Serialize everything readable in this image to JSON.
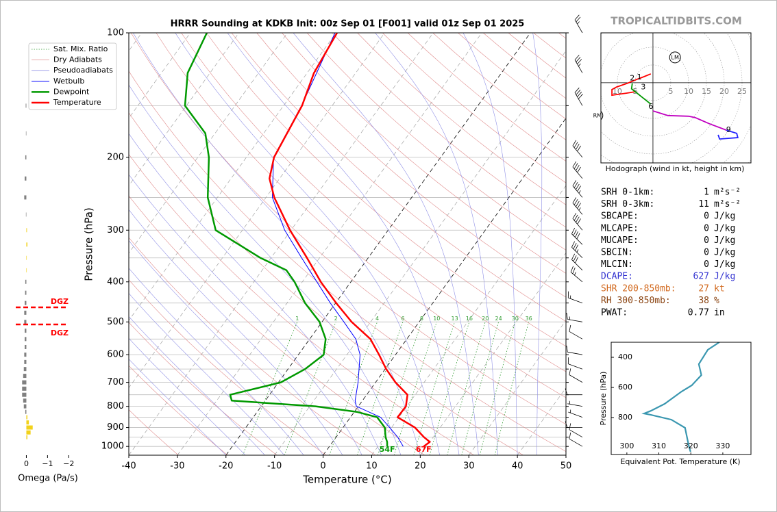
{
  "header": {
    "site": "TROPICALTIDBITS.COM"
  },
  "stats": [
    {
      "label": "SRH 0-1km:",
      "value": 1,
      "unit": "m²s⁻²",
      "color": "#000000"
    },
    {
      "label": "SRH 0-3km:",
      "value": 11,
      "unit": "m²s⁻²",
      "color": "#000000"
    },
    {
      "label": "SBCAPE:",
      "value": 0,
      "unit": "J/kg",
      "color": "#000000"
    },
    {
      "label": "MLCAPE:",
      "value": 0,
      "unit": "J/kg",
      "color": "#000000"
    },
    {
      "label": "MUCAPE:",
      "value": 0,
      "unit": "J/kg",
      "color": "#000000"
    },
    {
      "label": "SBCIN:",
      "value": 0,
      "unit": "J/kg",
      "color": "#000000"
    },
    {
      "label": "MLCIN:",
      "value": 0,
      "unit": "J/kg",
      "color": "#000000"
    },
    {
      "label": "DCAPE:",
      "value": 627,
      "unit": "J/kg",
      "color": "#3030d0"
    },
    {
      "label": "SHR 200-850mb:",
      "value": 27,
      "unit": "kt",
      "color": "#d2691e"
    },
    {
      "label": "RH 300-850mb:",
      "value": 38,
      "unit": "%",
      "color": "#8b4513"
    },
    {
      "label": "PWAT:",
      "value": 0.77,
      "unit": "in",
      "color": "#000000"
    }
  ],
  "chart_data": [
    {
      "type": "skewt",
      "title": "HRRR Sounding at KDKB Init: 00z Sep 01 [F001] valid 01z Sep 01 2025",
      "x_label": "Temperature (°C)",
      "y_label": "Pressure (hPa)",
      "xlim": [
        -40,
        50
      ],
      "xticks": [
        -40,
        -30,
        -20,
        -10,
        0,
        10,
        20,
        30,
        40,
        50
      ],
      "ylim": [
        1050,
        100
      ],
      "yticks": [
        100,
        200,
        300,
        400,
        500,
        600,
        700,
        800,
        900,
        1000
      ],
      "log_scale_y": true,
      "grid": true,
      "highlight_isotherms": [
        -20,
        0
      ],
      "series": [
        {
          "name": "Sat. Mix. Ratio",
          "style": "mixing-ratio",
          "color": "#2e9a2e",
          "linewidth": 0.8,
          "values": [
            1,
            2,
            4,
            6,
            8,
            10,
            13,
            16,
            20,
            24,
            30,
            36
          ]
        },
        {
          "name": "Dry Adiabats",
          "style": "dry-adiabat",
          "color": "#e08a8a",
          "linewidth": 0.6
        },
        {
          "name": "Pseudoadiabats",
          "style": "moist-adiabat",
          "color": "#8f8fe6",
          "linewidth": 0.6
        },
        {
          "name": "Wetbulb",
          "style": "profile",
          "color": "#0000ff",
          "linewidth": 1,
          "pressure": [
            1000,
            950,
            900,
            850,
            800,
            775,
            700,
            600,
            550,
            500,
            450,
            400,
            350,
            300,
            250,
            200,
            150,
            100
          ],
          "values": [
            15.2,
            12.7,
            9.6,
            6.2,
            -0.4,
            -1.5,
            -3.6,
            -7.3,
            -10.5,
            -15.5,
            -21.1,
            -27,
            -33.7,
            -41.3,
            -48.7,
            -54.4,
            -56.3,
            -60.2
          ]
        },
        {
          "name": "Dewpoint",
          "style": "profile",
          "color": "#009900",
          "linewidth": 2.5,
          "surface_label": "54F",
          "pressure": [
            1000,
            975,
            950,
            900,
            850,
            825,
            800,
            775,
            750,
            700,
            650,
            600,
            550,
            500,
            450,
            400,
            375,
            350,
            300,
            250,
            200,
            175,
            150,
            125,
            100
          ],
          "values": [
            11.9,
            11.2,
            10.2,
            8.6,
            5.5,
            0.5,
            -8.8,
            -26.9,
            -28.1,
            -19.5,
            -16.5,
            -14.8,
            -16.7,
            -20.5,
            -26.3,
            -31.6,
            -35,
            -42.2,
            -55.5,
            -62,
            -67.7,
            -72,
            -80.3,
            -84.6,
            -86.6
          ]
        },
        {
          "name": "Temperature",
          "style": "profile",
          "color": "#ff0000",
          "linewidth": 2.5,
          "surface_label": "67F",
          "pressure": [
            1000,
            975,
            950,
            900,
            850,
            800,
            750,
            700,
            650,
            600,
            550,
            500,
            450,
            400,
            350,
            300,
            250,
            225,
            200,
            150,
            125,
            100
          ],
          "values": [
            19.4,
            20.0,
            18.1,
            14.8,
            9.7,
            9.8,
            8.4,
            4.1,
            0.2,
            -3.4,
            -7.5,
            -13.9,
            -19.9,
            -26.2,
            -32.6,
            -40.2,
            -48.3,
            -52.1,
            -54.3,
            -56.2,
            -58.6,
            -59.8
          ]
        }
      ],
      "wind": {
        "pressure": [
          100,
          125,
          150,
          200,
          225,
          250,
          275,
          300,
          325,
          350,
          375,
          400,
          450,
          500,
          550,
          600,
          650,
          700,
          750,
          800,
          850,
          900,
          950,
          1000
        ],
        "direction": [
          330,
          330,
          330,
          320,
          320,
          320,
          320,
          320,
          315,
          315,
          315,
          310,
          290,
          280,
          300,
          280,
          290,
          300,
          270,
          280,
          290,
          270,
          300,
          300
        ],
        "speed": [
          25,
          35,
          40,
          40,
          40,
          45,
          45,
          40,
          40,
          35,
          30,
          25,
          15,
          15,
          10,
          10,
          10,
          10,
          10,
          5,
          5,
          10,
          10,
          10
        ]
      }
    },
    {
      "type": "barh",
      "x_label": "Omega (Pa/s)",
      "xlim": [
        0.5,
        -2.25
      ],
      "xticks": [
        0,
        {
          "value": -1,
          "label": "−1"
        },
        {
          "value": -2,
          "label": "−2"
        }
      ],
      "ylim": [
        1050,
        100
      ],
      "colors": {
        "positive": "#808080",
        "negative": "#f2d21a"
      },
      "pressure": [
        150,
        175,
        200,
        225,
        250,
        275,
        300,
        325,
        350,
        375,
        400,
        425,
        450,
        475,
        500,
        525,
        550,
        575,
        600,
        625,
        650,
        675,
        700,
        725,
        750,
        775,
        800,
        825,
        850,
        875,
        900,
        925,
        950
      ],
      "values": [
        0.03,
        0.02,
        0.05,
        0.08,
        0.1,
        0.02,
        -0.03,
        -0.05,
        -0.02,
        -0.02,
        0.05,
        0.06,
        0.08,
        0.1,
        0.1,
        0.08,
        0.08,
        0.08,
        0.1,
        0.1,
        0.12,
        0.15,
        0.2,
        0.2,
        0.2,
        0.15,
        0.12,
        0.05,
        -0.05,
        -0.12,
        -0.3,
        -0.2,
        -0.05
      ],
      "dgz": {
        "label": "DGZ",
        "color": "#ff0000",
        "top": 461,
        "bottom": 507
      }
    },
    {
      "type": "hodograph",
      "caption": "Hodograph (wind in kt, height in km)",
      "xlim": [
        -14.6,
        27.5
      ],
      "ylim": [
        -22.5,
        14
      ],
      "ring_labels": [
        {
          "value": -10,
          "label": "10"
        },
        {
          "value": -5,
          "label": "5"
        },
        5,
        10,
        15,
        20,
        25
      ],
      "series": [
        {
          "color": "#ff0000",
          "u": [
            -0.6,
            -2.5,
            -4.4,
            -7.3,
            -10.2,
            -11.5,
            -11.5,
            -7.3,
            -4.8
          ],
          "v": [
            2.5,
            1.7,
            1.0,
            -0.2,
            -1.2,
            -1.9,
            -3.5,
            -2.9,
            -2.5
          ]
        },
        {
          "color": "#009900",
          "u": [
            -5.8,
            -6.0,
            -3.5,
            -0.6
          ],
          "v": [
            -0.2,
            -1.7,
            -3.7,
            -6.0
          ]
        },
        {
          "color": "#c000c0",
          "u": [
            0,
            4.2,
            10.0,
            11.9,
            15.8,
            20.6
          ],
          "v": [
            -7.9,
            -9.2,
            -9.4,
            -9.8,
            -11.5,
            -13.3
          ]
        },
        {
          "color": "#2020ff",
          "u": [
            20.6,
            23.5,
            23.8,
            18.7,
            18.3
          ],
          "v": [
            -13.3,
            -14.2,
            -15.4,
            -15.8,
            -14.6
          ]
        }
      ],
      "height_labels": [
        {
          "label": "1",
          "u": -3.8,
          "v": 1.5
        },
        {
          "label": "2",
          "u": -5.8,
          "v": 1.2
        },
        {
          "label": "3",
          "u": -2.7,
          "v": -1.3
        },
        {
          "label": "6",
          "u": -0.6,
          "v": -6.7
        },
        {
          "label": "9",
          "u": 21.2,
          "v": -13.3
        }
      ],
      "storm_motion": [
        {
          "label": "LM",
          "u": 6.2,
          "v": 7.1
        },
        {
          "label": "RM",
          "u": -15.6,
          "v": -9.2
        }
      ]
    },
    {
      "type": "line",
      "x_label": "Equivalent Pot. Temperature (K)",
      "y_label": "Pressure (hPa)",
      "xlim": [
        295.1,
        338.8
      ],
      "xticks": [
        300,
        310,
        320,
        330
      ],
      "ylim": [
        1045,
        300
      ],
      "yticks": [
        400,
        600,
        800
      ],
      "color": "#3a97b0",
      "x": [
        328.9,
        325.3,
        322.5,
        323.3,
        320.3,
        317.1,
        311.8,
        307.5,
        305.4,
        307.5,
        313.9,
        318.2,
        319.3,
        319.9
      ],
      "values": [
        300,
        350,
        445,
        518,
        586,
        627,
        709,
        755,
        773,
        782,
        814,
        868,
        982,
        1027
      ]
    }
  ]
}
